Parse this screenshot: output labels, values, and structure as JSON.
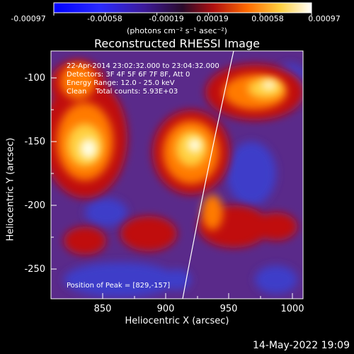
{
  "colorbar": {
    "ticks": [
      "-0.00097",
      "-0.00058",
      "-0.00019",
      "0.00019",
      "0.00058",
      "0.00097"
    ],
    "units": "(photons cm⁻² s⁻¹ asec⁻²)"
  },
  "plot": {
    "title": "Reconstructed RHESSI Image",
    "annotation_lines": [
      "22-Apr-2014 23:02:32.000 to 23:04:32.000",
      "Detectors: 3F 4F 5F 6F 7F 8F, Att 0",
      "Energy Range: 12.0 - 25.0 keV",
      "Clean    Total counts: 5.93E+03"
    ],
    "peak_label": "Position of Peak = [829,-157]",
    "xlabel": "Heliocentric X (arcsec)",
    "ylabel": "Heliocentric Y (arcsec)",
    "xticks": [
      "850",
      "900",
      "950",
      "1000"
    ],
    "yticks": [
      "-100",
      "-150",
      "-200",
      "-250"
    ],
    "colors": {
      "low": "#1a1aff",
      "mid": "#6a2a9a",
      "high": "#ffffe0",
      "accent": "#ff7a00"
    }
  },
  "footer": {
    "date": "14-May-2022 19:09"
  }
}
